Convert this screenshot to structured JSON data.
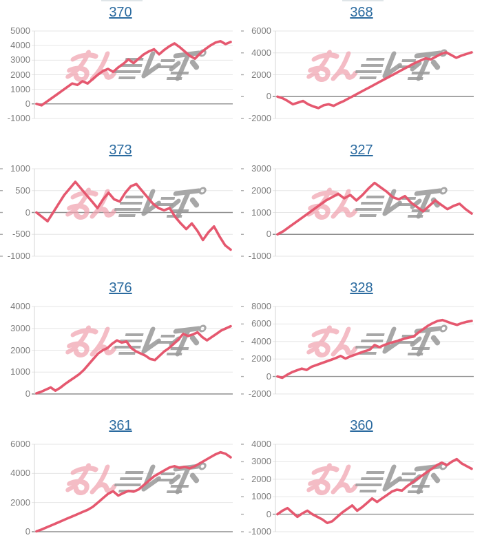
{
  "page": {
    "description": "Grid of eight pachislot machine daily slump graphs (cumulative payout lines), each titled with a machine number link",
    "grid": {
      "columns": 2,
      "rows": 4
    }
  },
  "colors": {
    "line": "#e5586f",
    "grid": "#e6e6e6",
    "baseline": "#8f8f8f",
    "axis_line": "#d4d4d4",
    "tick_label": "#7d7d7d",
    "title_link": "#2a6a9f",
    "watermark_pink": "#f0a3b0",
    "watermark_gray": "#9c9c9c",
    "edge_tick": "#a9a9a9"
  },
  "watermark": {
    "name": "minrepo-logo",
    "pink_text": "みん",
    "gray_text": "レポ"
  },
  "chart_data": [
    {
      "machine": "370",
      "type": "line",
      "title": "370",
      "ylim": [
        -1000,
        5000
      ],
      "yticks": [
        5000,
        4000,
        3000,
        2000,
        1000,
        0,
        -1000
      ],
      "values": [
        0,
        -100,
        150,
        400,
        650,
        900,
        1150,
        1400,
        1300,
        1550,
        1400,
        1700,
        2000,
        2250,
        2400,
        2200,
        2500,
        2750,
        3050,
        2800,
        3100,
        3400,
        3600,
        3750,
        3400,
        3700,
        3950,
        4150,
        3900,
        3600,
        3300,
        3100,
        3450,
        3750,
        4000,
        4200,
        4300,
        4100,
        4250
      ],
      "edge_ticks": false,
      "top_artifact": true
    },
    {
      "machine": "368",
      "type": "line",
      "title": "368",
      "ylim": [
        -2000,
        6000
      ],
      "yticks": [
        6000,
        4000,
        2000,
        0,
        -2000
      ],
      "values": [
        0,
        -150,
        -400,
        -700,
        -550,
        -400,
        -700,
        -900,
        -1050,
        -800,
        -700,
        -850,
        -600,
        -400,
        -150,
        100,
        350,
        600,
        850,
        1100,
        1350,
        1600,
        1850,
        2100,
        2350,
        2600,
        2850,
        3100,
        3300,
        3500,
        3400,
        3650,
        3900,
        4050,
        3800,
        3550,
        3750,
        3900,
        4050
      ],
      "edge_ticks": true,
      "top_artifact": true
    },
    {
      "machine": "373",
      "type": "line",
      "title": "373",
      "ylim": [
        -1000,
        1000
      ],
      "yticks": [
        1000,
        500,
        0,
        -500,
        -1000
      ],
      "values": [
        0,
        -100,
        -200,
        0,
        200,
        400,
        550,
        700,
        550,
        400,
        250,
        100,
        300,
        450,
        300,
        250,
        450,
        600,
        650,
        500,
        350,
        200,
        100,
        50,
        100,
        -100,
        -250,
        -380,
        -250,
        -420,
        -630,
        -450,
        -320,
        -550,
        -750,
        -850
      ],
      "edge_ticks": true,
      "top_artifact": false
    },
    {
      "machine": "327",
      "type": "line",
      "title": "327",
      "ylim": [
        -1000,
        3000
      ],
      "yticks": [
        3000,
        2000,
        1000,
        0,
        -1000
      ],
      "values": [
        0,
        150,
        350,
        550,
        750,
        950,
        1150,
        1350,
        1550,
        1700,
        1850,
        1650,
        1800,
        1550,
        1800,
        2100,
        2350,
        2150,
        1950,
        1700,
        1600,
        1750,
        1450,
        1250,
        1050,
        1300,
        1550,
        1350,
        1150,
        1300,
        1400,
        1150,
        950
      ],
      "edge_ticks": true,
      "top_artifact": false
    },
    {
      "machine": "376",
      "type": "line",
      "title": "376",
      "ylim": [
        0,
        4000
      ],
      "yticks": [
        4000,
        3000,
        2000,
        1000,
        0
      ],
      "values": [
        30,
        100,
        200,
        300,
        150,
        280,
        450,
        600,
        750,
        900,
        1100,
        1350,
        1600,
        1850,
        2000,
        2100,
        2300,
        2450,
        2350,
        2400,
        2100,
        1950,
        1850,
        1750,
        1600,
        1550,
        1750,
        1950,
        2100,
        2300,
        2500,
        2750,
        2650,
        2720,
        2820,
        2600,
        2450,
        2600,
        2750,
        2900,
        3000,
        3100
      ],
      "edge_ticks": false,
      "top_artifact": false
    },
    {
      "machine": "328",
      "type": "line",
      "title": "328",
      "ylim": [
        -2000,
        8000
      ],
      "yticks": [
        8000,
        6000,
        4000,
        2000,
        0,
        -2000
      ],
      "values": [
        0,
        -150,
        200,
        500,
        700,
        900,
        750,
        1100,
        1300,
        1500,
        1700,
        1900,
        2100,
        2350,
        2050,
        2300,
        2500,
        2700,
        2900,
        3050,
        3600,
        3350,
        3600,
        3800,
        3950,
        4100,
        4300,
        4450,
        4550,
        5000,
        5400,
        5800,
        6100,
        6350,
        6450,
        6250,
        6050,
        5900,
        6100,
        6250,
        6350
      ],
      "edge_ticks": true,
      "top_artifact": false
    },
    {
      "machine": "361",
      "type": "line",
      "title": "361",
      "ylim": [
        0,
        6000
      ],
      "yticks": [
        6000,
        4000,
        2000,
        0
      ],
      "values": [
        30,
        150,
        300,
        450,
        600,
        750,
        900,
        1050,
        1200,
        1350,
        1500,
        1700,
        2000,
        2300,
        2600,
        2780,
        2480,
        2650,
        2800,
        2750,
        2900,
        3200,
        3500,
        3800,
        4000,
        4200,
        4400,
        4500,
        4380,
        4450,
        4350,
        4500,
        4700,
        4900,
        5100,
        5300,
        5450,
        5350,
        5100
      ],
      "edge_ticks": false,
      "top_artifact": false
    },
    {
      "machine": "360",
      "type": "line",
      "title": "360",
      "ylim": [
        -1000,
        4000
      ],
      "yticks": [
        4000,
        3000,
        2000,
        1000,
        0,
        -1000
      ],
      "values": [
        0,
        200,
        350,
        100,
        -150,
        50,
        200,
        0,
        -150,
        -300,
        -500,
        -400,
        -150,
        100,
        300,
        500,
        200,
        400,
        650,
        900,
        700,
        900,
        1100,
        1300,
        1400,
        1350,
        1600,
        1800,
        2000,
        2200,
        2400,
        2600,
        2800,
        2950,
        2800,
        3000,
        3150,
        2900,
        2750,
        2600
      ],
      "edge_ticks": true,
      "top_artifact": false
    }
  ]
}
